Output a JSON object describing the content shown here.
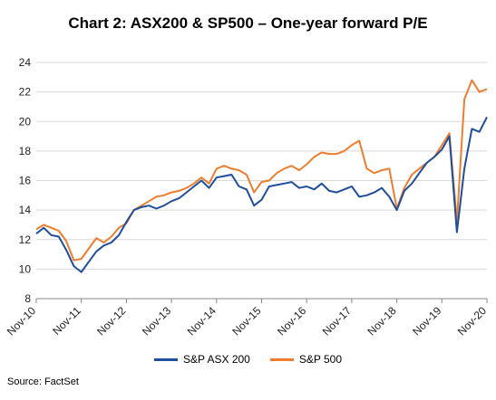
{
  "chart_data": {
    "type": "line",
    "title": "Chart 2: ASX200 &  SP500 – One-year forward P/E",
    "xlabel": "",
    "ylabel": "",
    "ylim": [
      8,
      24
    ],
    "yticks": [
      8,
      10,
      12,
      14,
      16,
      18,
      20,
      22,
      24
    ],
    "grid": "horizontal",
    "legend_position": "bottom",
    "x_tick_labels": [
      "Nov-10",
      "Nov-11",
      "Nov-12",
      "Nov-13",
      "Nov-14",
      "Nov-15",
      "Nov-16",
      "Nov-17",
      "Nov-18",
      "Nov-19",
      "Nov-20"
    ],
    "x": [
      "2010-11",
      "2011-01",
      "2011-03",
      "2011-05",
      "2011-07",
      "2011-09",
      "2011-11",
      "2012-01",
      "2012-03",
      "2012-05",
      "2012-07",
      "2012-09",
      "2012-11",
      "2013-01",
      "2013-03",
      "2013-05",
      "2013-07",
      "2013-09",
      "2013-11",
      "2014-01",
      "2014-03",
      "2014-05",
      "2014-07",
      "2014-09",
      "2014-11",
      "2015-01",
      "2015-03",
      "2015-05",
      "2015-07",
      "2015-09",
      "2015-11",
      "2016-01",
      "2016-03",
      "2016-05",
      "2016-07",
      "2016-09",
      "2016-11",
      "2017-01",
      "2017-03",
      "2017-05",
      "2017-07",
      "2017-09",
      "2017-11",
      "2018-01",
      "2018-03",
      "2018-05",
      "2018-07",
      "2018-09",
      "2018-11",
      "2019-01",
      "2019-03",
      "2019-05",
      "2019-07",
      "2019-09",
      "2019-11",
      "2020-01",
      "2020-03",
      "2020-05",
      "2020-07",
      "2020-09",
      "2020-11"
    ],
    "series": [
      {
        "name": "S&P ASX 200",
        "color": "#1f4e9c",
        "values": [
          12.4,
          12.8,
          12.3,
          12.2,
          11.3,
          10.2,
          9.8,
          10.5,
          11.2,
          11.6,
          11.8,
          12.3,
          13.2,
          14.0,
          14.2,
          14.3,
          14.1,
          14.3,
          14.6,
          14.8,
          15.2,
          15.6,
          16.0,
          15.5,
          16.2,
          16.3,
          16.4,
          15.6,
          15.4,
          14.3,
          14.7,
          15.6,
          15.7,
          15.8,
          15.9,
          15.5,
          15.6,
          15.4,
          15.8,
          15.3,
          15.2,
          15.4,
          15.6,
          14.9,
          15.0,
          15.2,
          15.5,
          14.9,
          14.0,
          15.3,
          15.8,
          16.5,
          17.2,
          17.6,
          18.1,
          19.0,
          12.5,
          16.8,
          19.5,
          19.3,
          20.3
        ]
      },
      {
        "name": "S&P 500",
        "color": "#ee7d2e",
        "values": [
          12.7,
          13.0,
          12.8,
          12.6,
          11.9,
          10.6,
          10.7,
          11.4,
          12.1,
          11.8,
          12.2,
          12.8,
          13.1,
          14.0,
          14.3,
          14.6,
          14.9,
          15.0,
          15.2,
          15.3,
          15.5,
          15.8,
          16.2,
          15.8,
          16.8,
          17.0,
          16.8,
          16.7,
          16.4,
          15.2,
          15.9,
          16.0,
          16.5,
          16.8,
          17.0,
          16.7,
          17.1,
          17.6,
          17.9,
          17.8,
          17.8,
          18.0,
          18.4,
          18.7,
          16.8,
          16.5,
          16.7,
          16.8,
          14.1,
          15.5,
          16.4,
          16.8,
          17.2,
          17.6,
          18.4,
          19.2,
          13.2,
          21.5,
          22.8,
          22.0,
          22.2
        ]
      }
    ],
    "source": "Source: FactSet"
  }
}
